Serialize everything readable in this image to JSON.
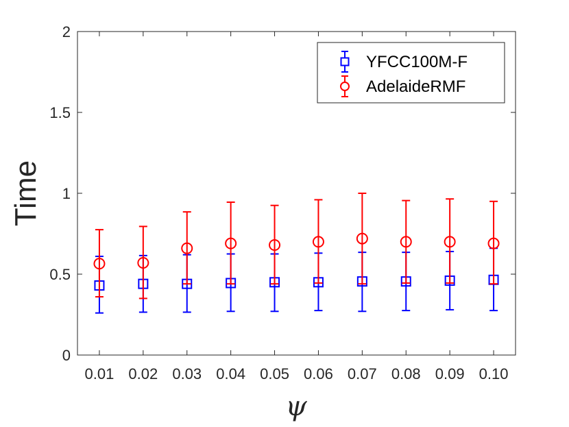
{
  "chart_data": {
    "type": "scatter",
    "title": "",
    "xlabel": "ψ",
    "ylabel": "Time",
    "ylim": [
      0,
      2
    ],
    "grid": false,
    "legend_position": "top-right",
    "categories": [
      "0.01",
      "0.02",
      "0.03",
      "0.04",
      "0.05",
      "0.06",
      "0.07",
      "0.08",
      "0.09",
      "0.10"
    ],
    "yticks": [
      "0",
      "0.5",
      "1",
      "1.5",
      "2"
    ],
    "series": [
      {
        "name": "YFCC100M-F",
        "color": "#0000ff",
        "marker": "square",
        "values": [
          0.43,
          0.44,
          0.44,
          0.445,
          0.45,
          0.45,
          0.455,
          0.455,
          0.46,
          0.465
        ],
        "lower": [
          0.26,
          0.265,
          0.265,
          0.27,
          0.27,
          0.275,
          0.27,
          0.275,
          0.28,
          0.275
        ],
        "upper": [
          0.61,
          0.615,
          0.62,
          0.625,
          0.625,
          0.63,
          0.635,
          0.635,
          0.64,
          0.66
        ]
      },
      {
        "name": "AdelaideRMF",
        "color": "#ff0000",
        "marker": "circle",
        "values": [
          0.565,
          0.57,
          0.66,
          0.69,
          0.68,
          0.7,
          0.72,
          0.7,
          0.7,
          0.69
        ],
        "lower": [
          0.36,
          0.35,
          0.44,
          0.44,
          0.44,
          0.445,
          0.44,
          0.445,
          0.445,
          0.44
        ],
        "upper": [
          0.775,
          0.795,
          0.885,
          0.945,
          0.925,
          0.96,
          1.0,
          0.955,
          0.965,
          0.95
        ]
      }
    ]
  }
}
